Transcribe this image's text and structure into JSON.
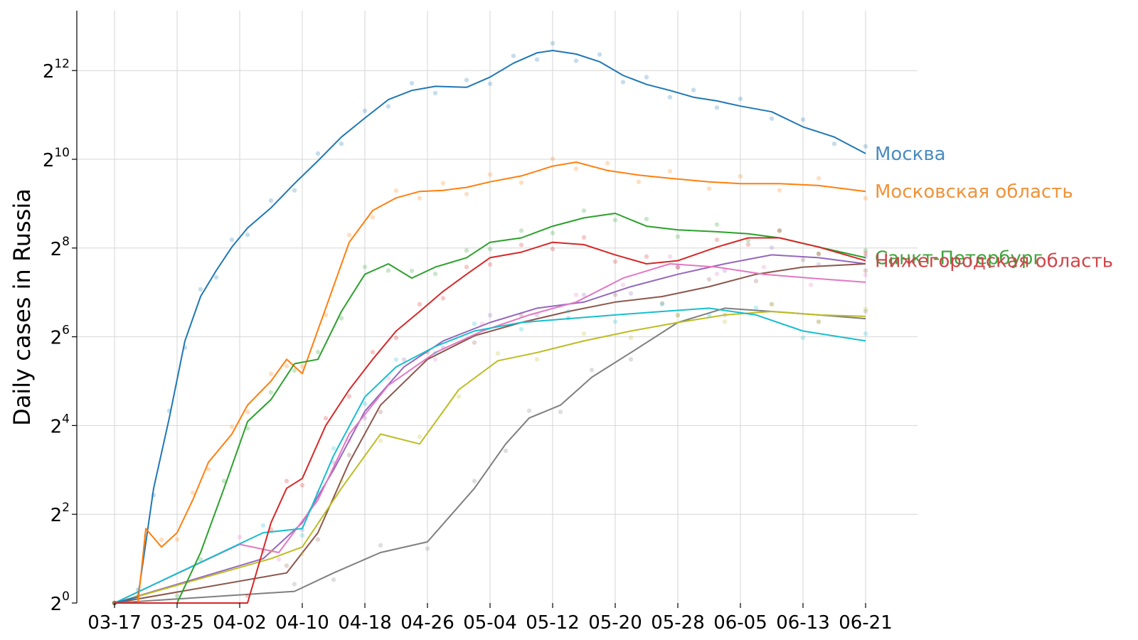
{
  "chart_data": {
    "type": "line",
    "ylabel": "Daily cases in Russia",
    "y_scale": "log2",
    "ylim_exponent": [
      0,
      13.3
    ],
    "y_ticks": [
      {
        "base": "2",
        "exp": "0",
        "value": 1
      },
      {
        "base": "2",
        "exp": "2",
        "value": 4
      },
      {
        "base": "2",
        "exp": "4",
        "value": 16
      },
      {
        "base": "2",
        "exp": "6",
        "value": 64
      },
      {
        "base": "2",
        "exp": "8",
        "value": 256
      },
      {
        "base": "2",
        "exp": "10",
        "value": 1024
      },
      {
        "base": "2",
        "exp": "12",
        "value": 4096
      }
    ],
    "x_ticks": [
      "03-17",
      "03-25",
      "04-02",
      "04-10",
      "04-18",
      "04-26",
      "05-04",
      "05-12",
      "05-20",
      "05-28",
      "06-05",
      "06-13",
      "06-21"
    ],
    "grid": true,
    "labeled_series": [
      {
        "name": "Москва",
        "color": "#1f77b4",
        "label_color": "#4a8cc0",
        "x": [
          "03-17",
          "03-20",
          "03-22",
          "03-24",
          "03-26",
          "03-28",
          "03-30",
          "04-01",
          "04-03",
          "04-06",
          "04-09",
          "04-12",
          "04-15",
          "04-18",
          "04-21",
          "04-24",
          "04-27",
          "05-01",
          "05-04",
          "05-07",
          "05-10",
          "05-12",
          "05-15",
          "05-18",
          "05-21",
          "05-24",
          "05-27",
          "05-30",
          "06-02",
          "06-05",
          "06-09",
          "06-13",
          "06-17",
          "06-21"
        ],
        "y": [
          1,
          1.1,
          6,
          18,
          60,
          120,
          180,
          260,
          350,
          480,
          700,
          1000,
          1450,
          1950,
          2600,
          3000,
          3200,
          3150,
          3700,
          4600,
          5400,
          5600,
          5300,
          4700,
          3800,
          3300,
          3000,
          2700,
          2550,
          2350,
          2150,
          1700,
          1450,
          1120
        ]
      },
      {
        "name": "Московская область",
        "color": "#ff7f0e",
        "label_color": "#f0923a",
        "x": [
          "03-17",
          "03-20",
          "03-21",
          "03-23",
          "03-25",
          "03-27",
          "03-29",
          "04-01",
          "04-03",
          "04-06",
          "04-08",
          "04-10",
          "04-13",
          "04-16",
          "04-19",
          "04-22",
          "04-25",
          "04-28",
          "05-01",
          "05-04",
          "05-08",
          "05-12",
          "05-15",
          "05-19",
          "05-23",
          "05-27",
          "06-01",
          "06-05",
          "06-10",
          "06-15",
          "06-21"
        ],
        "y": [
          1,
          1,
          3.2,
          2.4,
          3,
          5,
          9,
          14,
          22,
          32,
          45,
          36,
          100,
          280,
          460,
          560,
          620,
          630,
          660,
          720,
          790,
          920,
          980,
          860,
          800,
          760,
          720,
          700,
          700,
          680,
          620
        ]
      },
      {
        "name": "Санкт-Петербург",
        "color": "#2ca02c",
        "label_color": "#3ea53e",
        "x": [
          "03-17",
          "03-25",
          "03-28",
          "03-31",
          "04-03",
          "04-06",
          "04-09",
          "04-12",
          "04-15",
          "04-18",
          "04-21",
          "04-24",
          "04-27",
          "05-01",
          "05-04",
          "05-08",
          "05-12",
          "05-16",
          "05-20",
          "05-24",
          "05-28",
          "06-02",
          "06-06",
          "06-10",
          "06-15",
          "06-21"
        ],
        "y": [
          1,
          1,
          2.2,
          6,
          17,
          24,
          42,
          45,
          95,
          170,
          200,
          160,
          190,
          220,
          280,
          300,
          360,
          410,
          440,
          360,
          340,
          330,
          320,
          300,
          260,
          220
        ]
      },
      {
        "name": "Нижегородская область",
        "color": "#d62728",
        "label_color": "#d0454a",
        "x": [
          "03-17",
          "04-03",
          "04-06",
          "04-08",
          "04-10",
          "04-13",
          "04-16",
          "04-19",
          "04-22",
          "04-25",
          "04-28",
          "05-01",
          "05-04",
          "05-08",
          "05-12",
          "05-16",
          "05-20",
          "05-24",
          "05-28",
          "06-02",
          "06-06",
          "06-10",
          "06-15",
          "06-21"
        ],
        "y": [
          1,
          1,
          3.5,
          6,
          7,
          16,
          28,
          45,
          70,
          95,
          130,
          170,
          220,
          240,
          280,
          270,
          230,
          200,
          210,
          260,
          300,
          300,
          260,
          210
        ]
      }
    ],
    "other_series": [
      {
        "color": "#9467bd",
        "x": [
          "03-17",
          "04-05",
          "04-10",
          "04-14",
          "04-18",
          "04-23",
          "04-28",
          "05-04",
          "05-10",
          "05-16",
          "05-22",
          "05-28",
          "06-03",
          "06-09",
          "06-15",
          "06-21"
        ],
        "y": [
          1,
          2,
          3.5,
          8,
          20,
          40,
          60,
          80,
          100,
          110,
          140,
          170,
          200,
          230,
          220,
          200
        ]
      },
      {
        "color": "#8c564b",
        "x": [
          "03-17",
          "04-08",
          "04-12",
          "04-16",
          "04-20",
          "04-26",
          "05-02",
          "05-08",
          "05-14",
          "05-20",
          "05-26",
          "06-01",
          "06-07",
          "06-13",
          "06-21"
        ],
        "y": [
          1,
          1.6,
          3,
          9,
          22,
          45,
          65,
          80,
          95,
          110,
          120,
          140,
          170,
          190,
          200
        ]
      },
      {
        "color": "#e377c2",
        "x": [
          "03-17",
          "04-02",
          "04-07",
          "04-12",
          "04-16",
          "04-21",
          "04-27",
          "05-03",
          "05-09",
          "05-15",
          "05-21",
          "05-27",
          "06-02",
          "06-08",
          "06-14",
          "06-21"
        ],
        "y": [
          1,
          2.5,
          2.2,
          5,
          14,
          30,
          50,
          70,
          90,
          110,
          160,
          200,
          190,
          170,
          160,
          150
        ]
      },
      {
        "color": "#7f7f7f",
        "x": [
          "03-17",
          "04-09",
          "04-14",
          "04-20",
          "04-26",
          "05-02",
          "05-06",
          "05-09",
          "05-13",
          "05-17",
          "05-22",
          "05-28",
          "06-03",
          "06-09",
          "06-15",
          "06-21"
        ],
        "y": [
          1,
          1.2,
          1.6,
          2.2,
          2.6,
          6,
          12,
          18,
          22,
          34,
          50,
          80,
          100,
          95,
          90,
          85
        ]
      },
      {
        "color": "#bcbd22",
        "x": [
          "03-17",
          "04-06",
          "04-10",
          "04-15",
          "04-20",
          "04-25",
          "04-30",
          "05-05",
          "05-10",
          "05-16",
          "05-22",
          "05-28",
          "06-03",
          "06-09",
          "06-15",
          "06-21"
        ],
        "y": [
          1,
          2,
          2.4,
          6,
          14,
          12,
          28,
          44,
          50,
          60,
          70,
          80,
          90,
          95,
          90,
          88
        ]
      },
      {
        "color": "#17becf",
        "x": [
          "03-17",
          "04-05",
          "04-10",
          "04-14",
          "04-18",
          "04-22",
          "04-27",
          "05-02",
          "05-08",
          "05-14",
          "05-20",
          "05-26",
          "06-01",
          "06-07",
          "06-13",
          "06-21"
        ],
        "y": [
          1,
          3,
          3.2,
          10,
          25,
          40,
          55,
          70,
          80,
          85,
          90,
          95,
          100,
          90,
          70,
          60
        ]
      }
    ]
  }
}
